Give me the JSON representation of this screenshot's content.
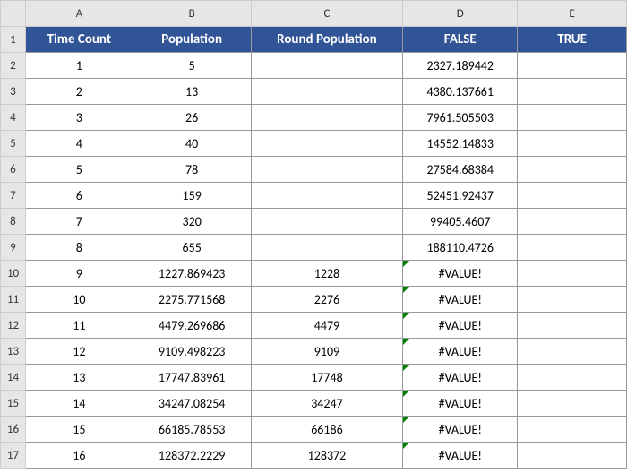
{
  "columns_letters": [
    "A",
    "B",
    "C",
    "D",
    "E"
  ],
  "row_numbers": [
    "1",
    "2",
    "3",
    "4",
    "5",
    "6",
    "7",
    "8",
    "9",
    "10",
    "11",
    "12",
    "13",
    "14",
    "15",
    "16",
    "17"
  ],
  "headers": {
    "a": "Time Count",
    "b": "Population",
    "c": "Round Population",
    "d": "FALSE",
    "e": "TRUE"
  },
  "rows": [
    {
      "a": "1",
      "b": "5",
      "c": "",
      "d": "2327.189442",
      "e": ""
    },
    {
      "a": "2",
      "b": "13",
      "c": "",
      "d": "4380.137661",
      "e": ""
    },
    {
      "a": "3",
      "b": "26",
      "c": "",
      "d": "7961.505503",
      "e": ""
    },
    {
      "a": "4",
      "b": "40",
      "c": "",
      "d": "14552.14833",
      "e": ""
    },
    {
      "a": "5",
      "b": "78",
      "c": "",
      "d": "27584.68384",
      "e": ""
    },
    {
      "a": "6",
      "b": "159",
      "c": "",
      "d": "52451.92437",
      "e": ""
    },
    {
      "a": "7",
      "b": "320",
      "c": "",
      "d": "99405.4607",
      "e": ""
    },
    {
      "a": "8",
      "b": "655",
      "c": "",
      "d": "188110.4726",
      "e": ""
    },
    {
      "a": "9",
      "b": "1227.869423",
      "c": "1228",
      "d": "#VALUE!",
      "e": "",
      "err": true
    },
    {
      "a": "10",
      "b": "2275.771568",
      "c": "2276",
      "d": "#VALUE!",
      "e": "",
      "err": true
    },
    {
      "a": "11",
      "b": "4479.269686",
      "c": "4479",
      "d": "#VALUE!",
      "e": "",
      "err": true
    },
    {
      "a": "12",
      "b": "9109.498223",
      "c": "9109",
      "d": "#VALUE!",
      "e": "",
      "err": true
    },
    {
      "a": "13",
      "b": "17747.83961",
      "c": "17748",
      "d": "#VALUE!",
      "e": "",
      "err": true
    },
    {
      "a": "14",
      "b": "34247.08254",
      "c": "34247",
      "d": "#VALUE!",
      "e": "",
      "err": true
    },
    {
      "a": "15",
      "b": "66185.78553",
      "c": "66186",
      "d": "#VALUE!",
      "e": "",
      "err": true
    },
    {
      "a": "16",
      "b": "128372.2229",
      "c": "128372",
      "d": "#VALUE!",
      "e": "",
      "err": true
    }
  ],
  "styling": {
    "header_bg": "#305496",
    "header_fg": "#ffffff",
    "grid_header_bg": "#e6e6e6",
    "cell_border": "#999999",
    "error_triangle": "#008000",
    "font_family": "Calibri",
    "cell_width_a": 120,
    "cell_width_b": 132,
    "cell_width_c": 170,
    "cell_width_d": 128,
    "cell_width_e": 122
  }
}
